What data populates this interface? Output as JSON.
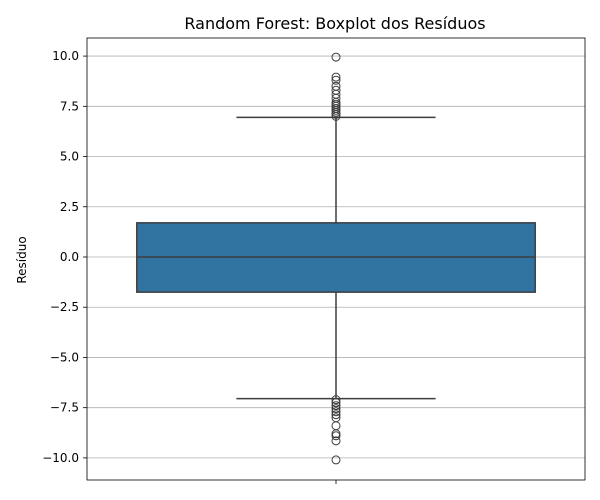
{
  "chart_data": {
    "type": "box",
    "title": "Random Forest: Boxplot dos Resíduos",
    "xlabel": "",
    "ylabel": "Resíduo",
    "ylim": [
      -11.1,
      10.9
    ],
    "yticks": [
      10.0,
      7.5,
      5.0,
      2.5,
      0.0,
      -2.5,
      -5.0,
      -7.5,
      -10.0
    ],
    "ytick_labels": [
      "10.0",
      "7.5",
      "5.0",
      "2.5",
      "0.0",
      "−2.5",
      "−5.0",
      "−7.5",
      "−10.0"
    ],
    "grid": "y",
    "box": {
      "q1": -1.75,
      "median": 0.0,
      "q3": 1.7,
      "whisker_low": -7.05,
      "whisker_high": 6.95,
      "outliers_high": [
        7.0,
        7.1,
        7.2,
        7.3,
        7.4,
        7.5,
        7.6,
        7.7,
        7.9,
        8.1,
        8.3,
        8.5,
        8.8,
        8.95,
        9.95
      ],
      "outliers_low": [
        -7.1,
        -7.25,
        -7.4,
        -7.55,
        -7.7,
        -7.85,
        -8.0,
        -8.4,
        -8.8,
        -8.9,
        -9.15,
        -10.1
      ]
    },
    "colors": {
      "box_fill": "#3274a1",
      "line": "#3d3d3d",
      "grid": "#b0b0b0"
    }
  }
}
